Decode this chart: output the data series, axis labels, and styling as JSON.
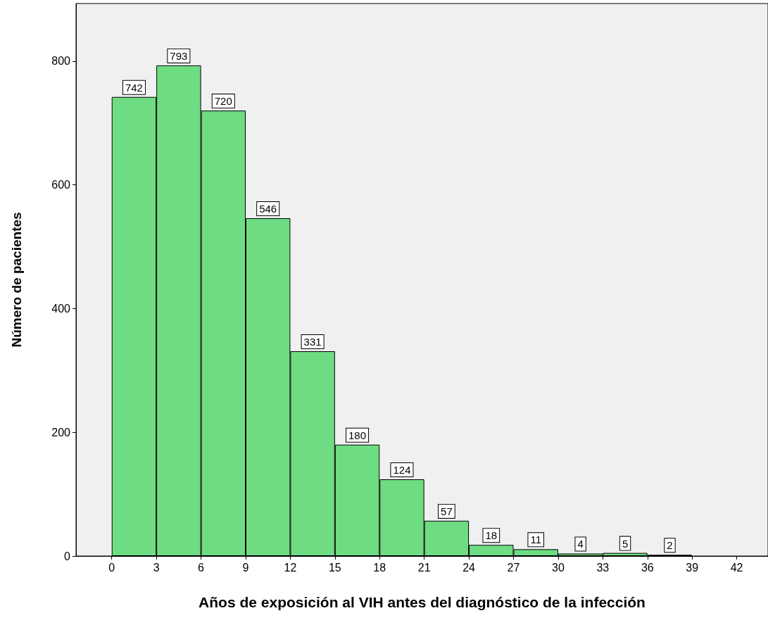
{
  "chart_data": {
    "type": "histogram",
    "xlabel": "Años de exposición al VIH antes del diagnóstico de la infección",
    "ylabel": "Número de pacientes",
    "bins": [
      0,
      3,
      6,
      9,
      12,
      15,
      18,
      21,
      24,
      27,
      30,
      33,
      36,
      39
    ],
    "values": [
      742,
      793,
      720,
      546,
      331,
      180,
      124,
      57,
      18,
      11,
      4,
      5,
      2
    ],
    "color": "#6edc82",
    "data_labels": true,
    "xlim": [
      -2.4,
      44.1
    ],
    "xticks": [
      0,
      3,
      6,
      9,
      12,
      15,
      18,
      21,
      24,
      27,
      30,
      33,
      36,
      39,
      42
    ],
    "ylim": [
      0,
      893
    ],
    "yticks": [
      0,
      200,
      400,
      600,
      800
    ]
  }
}
